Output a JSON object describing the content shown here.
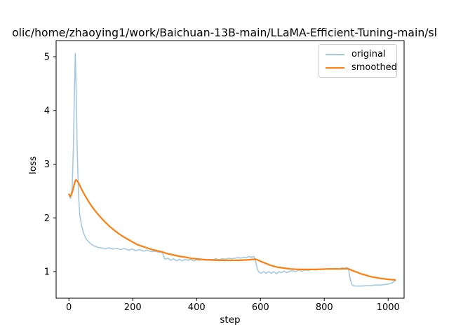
{
  "figure": {
    "title": "olic/home/zhaoying1/work/Baichuan-13B-main/LLaMA-Efficient-Tuning-main/sl"
  },
  "colors": {
    "original": "#a5c9e1",
    "smoothed": "#ff7f0e",
    "axis": "#000000",
    "legend_border": "#cccccc",
    "background": "#ffffff"
  },
  "legend": {
    "position": "upper right",
    "entries": [
      {
        "label": "original",
        "color": "#a5c9e1",
        "thickness": 2
      },
      {
        "label": "smoothed",
        "color": "#ff7f0e",
        "thickness": 2.5
      }
    ]
  },
  "chart_data": {
    "type": "line",
    "title": "olic/home/zhaoying1/work/Baichuan-13B-main/LLaMA-Efficient-Tuning-main/sl",
    "xlabel": "step",
    "ylabel": "loss",
    "xlim": [
      -40,
      1050
    ],
    "ylim": [
      0.505,
      5.3
    ],
    "x_ticks": [
      0,
      200,
      400,
      600,
      800,
      1000
    ],
    "y_ticks": [
      1,
      2,
      3,
      4,
      5
    ],
    "grid": false,
    "legend_position": "upper right",
    "series": [
      {
        "name": "original",
        "color": "#a5c9e1",
        "width": 1.6,
        "points": [
          [
            0,
            2.42
          ],
          [
            5,
            2.36
          ],
          [
            10,
            2.55
          ],
          [
            14,
            3.3
          ],
          [
            17,
            4.2
          ],
          [
            20,
            5.06
          ],
          [
            23,
            4.3
          ],
          [
            26,
            3.3
          ],
          [
            30,
            2.45
          ],
          [
            34,
            2.05
          ],
          [
            40,
            1.85
          ],
          [
            47,
            1.7
          ],
          [
            55,
            1.6
          ],
          [
            63,
            1.55
          ],
          [
            72,
            1.5
          ],
          [
            82,
            1.47
          ],
          [
            92,
            1.45
          ],
          [
            103,
            1.44
          ],
          [
            114,
            1.43
          ],
          [
            126,
            1.44
          ],
          [
            138,
            1.42
          ],
          [
            150,
            1.43
          ],
          [
            162,
            1.41
          ],
          [
            174,
            1.43
          ],
          [
            186,
            1.4
          ],
          [
            198,
            1.42
          ],
          [
            210,
            1.39
          ],
          [
            222,
            1.41
          ],
          [
            234,
            1.38
          ],
          [
            246,
            1.4
          ],
          [
            258,
            1.37
          ],
          [
            270,
            1.38
          ],
          [
            282,
            1.36
          ],
          [
            292,
            1.37
          ],
          [
            296,
            1.3
          ],
          [
            301,
            1.23
          ],
          [
            310,
            1.25
          ],
          [
            319,
            1.21
          ],
          [
            328,
            1.24
          ],
          [
            337,
            1.2
          ],
          [
            346,
            1.23
          ],
          [
            355,
            1.2
          ],
          [
            364,
            1.23
          ],
          [
            373,
            1.21
          ],
          [
            382,
            1.23
          ],
          [
            391,
            1.2
          ],
          [
            400,
            1.22
          ],
          [
            410,
            1.21
          ],
          [
            420,
            1.23
          ],
          [
            430,
            1.21
          ],
          [
            440,
            1.23
          ],
          [
            450,
            1.22
          ],
          [
            460,
            1.24
          ],
          [
            470,
            1.22
          ],
          [
            480,
            1.24
          ],
          [
            490,
            1.23
          ],
          [
            500,
            1.25
          ],
          [
            510,
            1.24
          ],
          [
            520,
            1.25
          ],
          [
            530,
            1.26
          ],
          [
            540,
            1.25
          ],
          [
            548,
            1.27
          ],
          [
            556,
            1.26
          ],
          [
            564,
            1.28
          ],
          [
            572,
            1.27
          ],
          [
            580,
            1.28
          ],
          [
            585,
            1.2
          ],
          [
            590,
            1.05
          ],
          [
            595,
            0.99
          ],
          [
            602,
            0.97
          ],
          [
            610,
            1.0
          ],
          [
            618,
            0.97
          ],
          [
            626,
            1.0
          ],
          [
            634,
            0.97
          ],
          [
            642,
            1.0
          ],
          [
            650,
            0.96
          ],
          [
            658,
            1.0
          ],
          [
            666,
            0.98
          ],
          [
            674,
            1.01
          ],
          [
            682,
            0.98
          ],
          [
            690,
            1.0
          ],
          [
            700,
            1.02
          ],
          [
            710,
            1.0
          ],
          [
            720,
            1.03
          ],
          [
            730,
            1.01
          ],
          [
            740,
            1.03
          ],
          [
            750,
            1.02
          ],
          [
            762,
            1.04
          ],
          [
            774,
            1.03
          ],
          [
            786,
            1.05
          ],
          [
            798,
            1.04
          ],
          [
            810,
            1.05
          ],
          [
            822,
            1.05
          ],
          [
            834,
            1.06
          ],
          [
            846,
            1.05
          ],
          [
            856,
            1.07
          ],
          [
            864,
            1.06
          ],
          [
            871,
            1.08
          ],
          [
            876,
            1.05
          ],
          [
            880,
            0.9
          ],
          [
            885,
            0.78
          ],
          [
            890,
            0.74
          ],
          [
            900,
            0.73
          ],
          [
            915,
            0.73
          ],
          [
            930,
            0.74
          ],
          [
            945,
            0.74
          ],
          [
            960,
            0.75
          ],
          [
            975,
            0.75
          ],
          [
            990,
            0.76
          ],
          [
            1002,
            0.77
          ],
          [
            1012,
            0.79
          ],
          [
            1022,
            0.83
          ]
        ]
      },
      {
        "name": "smoothed",
        "color": "#ff7f0e",
        "width": 2.2,
        "points": [
          [
            0,
            2.44
          ],
          [
            5,
            2.4
          ],
          [
            10,
            2.47
          ],
          [
            15,
            2.58
          ],
          [
            19,
            2.67
          ],
          [
            22,
            2.71
          ],
          [
            26,
            2.69
          ],
          [
            32,
            2.63
          ],
          [
            40,
            2.53
          ],
          [
            50,
            2.42
          ],
          [
            60,
            2.32
          ],
          [
            72,
            2.21
          ],
          [
            85,
            2.11
          ],
          [
            98,
            2.02
          ],
          [
            112,
            1.93
          ],
          [
            126,
            1.85
          ],
          [
            140,
            1.78
          ],
          [
            155,
            1.71
          ],
          [
            170,
            1.65
          ],
          [
            185,
            1.6
          ],
          [
            200,
            1.55
          ],
          [
            215,
            1.5
          ],
          [
            230,
            1.47
          ],
          [
            245,
            1.44
          ],
          [
            260,
            1.41
          ],
          [
            275,
            1.39
          ],
          [
            290,
            1.37
          ],
          [
            305,
            1.34
          ],
          [
            320,
            1.32
          ],
          [
            335,
            1.3
          ],
          [
            350,
            1.28
          ],
          [
            365,
            1.27
          ],
          [
            380,
            1.25
          ],
          [
            395,
            1.24
          ],
          [
            410,
            1.23
          ],
          [
            430,
            1.22
          ],
          [
            450,
            1.215
          ],
          [
            470,
            1.21
          ],
          [
            490,
            1.21
          ],
          [
            510,
            1.21
          ],
          [
            530,
            1.21
          ],
          [
            550,
            1.215
          ],
          [
            565,
            1.22
          ],
          [
            578,
            1.23
          ],
          [
            586,
            1.23
          ],
          [
            594,
            1.21
          ],
          [
            605,
            1.18
          ],
          [
            618,
            1.15
          ],
          [
            630,
            1.12
          ],
          [
            642,
            1.1
          ],
          [
            655,
            1.08
          ],
          [
            668,
            1.07
          ],
          [
            680,
            1.06
          ],
          [
            695,
            1.05
          ],
          [
            710,
            1.045
          ],
          [
            730,
            1.04
          ],
          [
            750,
            1.04
          ],
          [
            770,
            1.04
          ],
          [
            790,
            1.045
          ],
          [
            810,
            1.05
          ],
          [
            830,
            1.05
          ],
          [
            850,
            1.05
          ],
          [
            866,
            1.055
          ],
          [
            876,
            1.05
          ],
          [
            884,
            1.03
          ],
          [
            892,
            1.01
          ],
          [
            902,
            0.99
          ],
          [
            914,
            0.96
          ],
          [
            926,
            0.94
          ],
          [
            938,
            0.92
          ],
          [
            950,
            0.9
          ],
          [
            962,
            0.89
          ],
          [
            975,
            0.875
          ],
          [
            988,
            0.865
          ],
          [
            1000,
            0.855
          ],
          [
            1012,
            0.85
          ],
          [
            1022,
            0.845
          ]
        ]
      }
    ]
  }
}
